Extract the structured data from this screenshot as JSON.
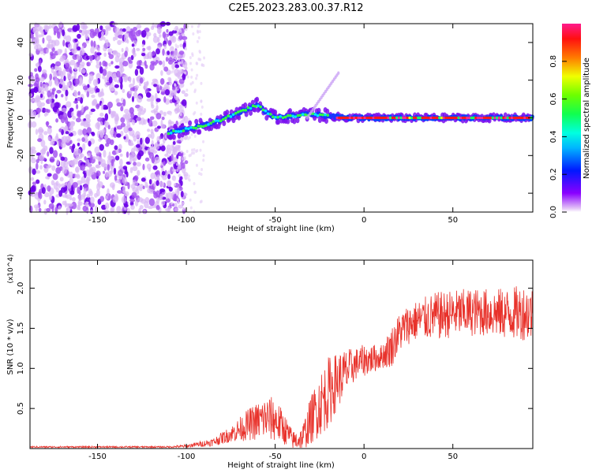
{
  "title": "C2E5.2023.283.00.37.R12",
  "chart_data": [
    {
      "type": "heatmap",
      "xlabel": "Height of straight line (km)",
      "ylabel": "Frequency (Hz)",
      "xlim": [
        -188,
        95
      ],
      "ylim": [
        -50,
        50
      ],
      "xticks": [
        -150,
        -100,
        -50,
        0,
        50
      ],
      "yticks": [
        -40,
        -20,
        0,
        20,
        40
      ],
      "colorbar": {
        "label": "Normalized spectral amplitude",
        "range": [
          0,
          1
        ],
        "ticks": [
          0.0,
          0.2,
          0.4,
          0.6,
          0.8
        ]
      },
      "ridge": {
        "x": [
          -110,
          -100,
          -90,
          -80,
          -70,
          -60,
          -55,
          -50,
          -40,
          -30,
          -20,
          -10,
          0,
          20,
          40,
          60,
          80,
          95
        ],
        "freq": [
          -8,
          -6,
          -4,
          -1,
          3,
          7,
          3,
          0,
          1,
          2,
          1,
          0,
          0,
          0,
          0,
          0,
          0,
          0
        ]
      },
      "noise_region_x": [
        -188,
        -108
      ]
    },
    {
      "type": "line",
      "xlabel": "Height of straight line (km)",
      "ylabel": "SNR (10 * v/v)",
      "scale_label": "(x10^4)",
      "xlim": [
        -188,
        95
      ],
      "ylim": [
        0,
        2.35
      ],
      "xticks": [
        -150,
        -100,
        -50,
        0,
        50
      ],
      "yticks": [
        0.5,
        1.0,
        1.5,
        2.0
      ],
      "series": [
        {
          "name": "SNR",
          "color": "#e8322b",
          "envelope": {
            "x": [
              -188,
              -110,
              -100,
              -85,
              -75,
              -65,
              -55,
              -50,
              -45,
              -40,
              -35,
              -30,
              -25,
              -20,
              -15,
              -10,
              -5,
              0,
              5,
              10,
              15,
              20,
              25,
              30,
              40,
              50,
              60,
              70,
              80,
              90,
              95
            ],
            "mean": [
              0.02,
              0.02,
              0.03,
              0.08,
              0.18,
              0.3,
              0.38,
              0.36,
              0.25,
              0.1,
              0.12,
              0.35,
              0.55,
              0.7,
              0.85,
              0.95,
              1.05,
              1.1,
              1.12,
              1.15,
              1.25,
              1.45,
              1.55,
              1.6,
              1.65,
              1.68,
              1.7,
              1.7,
              1.68,
              1.7,
              1.68
            ],
            "spread": [
              0.01,
              0.01,
              0.02,
              0.05,
              0.1,
              0.2,
              0.28,
              0.28,
              0.2,
              0.12,
              0.15,
              0.3,
              0.4,
              0.45,
              0.35,
              0.3,
              0.2,
              0.2,
              0.18,
              0.15,
              0.25,
              0.25,
              0.25,
              0.25,
              0.3,
              0.3,
              0.3,
              0.3,
              0.32,
              0.35,
              0.35
            ]
          }
        }
      ]
    }
  ]
}
